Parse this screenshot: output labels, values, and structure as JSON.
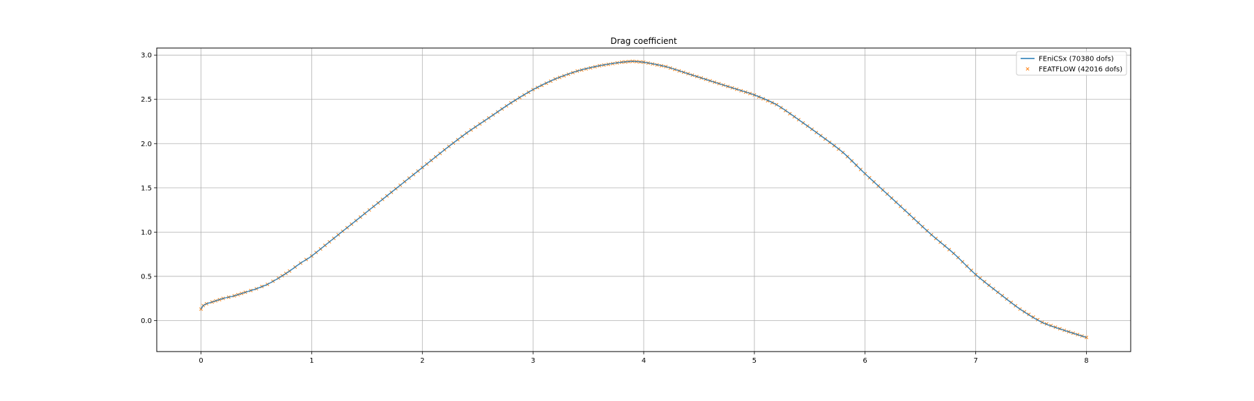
{
  "chart_data": {
    "type": "line",
    "title": "Drag coefficient",
    "xlabel": "",
    "ylabel": "",
    "xlim": [
      -0.4,
      8.4
    ],
    "ylim": [
      -0.35,
      3.08
    ],
    "xticks": [
      0,
      1,
      2,
      3,
      4,
      5,
      6,
      7,
      8
    ],
    "yticks": [
      0.0,
      0.5,
      1.0,
      1.5,
      2.0,
      2.5,
      3.0
    ],
    "xtick_labels": [
      "0",
      "1",
      "2",
      "3",
      "4",
      "5",
      "6",
      "7",
      "8"
    ],
    "ytick_labels": [
      "0.0",
      "0.5",
      "1.0",
      "1.5",
      "2.0",
      "2.5",
      "3.0"
    ],
    "grid": true,
    "legend_position": "top-right",
    "series": [
      {
        "name": "FEniCSx  (70380 dofs)",
        "style": "line",
        "color": "#1f77b4",
        "x": [
          0.0,
          0.02,
          0.05,
          0.1,
          0.2,
          0.3,
          0.4,
          0.5,
          0.6,
          0.7,
          0.8,
          0.9,
          1.0,
          1.2,
          1.4,
          1.6,
          1.8,
          2.0,
          2.2,
          2.4,
          2.6,
          2.8,
          3.0,
          3.2,
          3.4,
          3.6,
          3.8,
          3.9,
          4.0,
          4.2,
          4.4,
          4.6,
          4.8,
          5.0,
          5.2,
          5.4,
          5.6,
          5.8,
          6.0,
          6.2,
          6.4,
          6.6,
          6.8,
          7.0,
          7.2,
          7.4,
          7.6,
          7.8,
          8.0
        ],
        "y": [
          0.13,
          0.17,
          0.19,
          0.21,
          0.25,
          0.28,
          0.32,
          0.36,
          0.41,
          0.48,
          0.56,
          0.65,
          0.73,
          0.93,
          1.13,
          1.33,
          1.53,
          1.73,
          1.93,
          2.12,
          2.29,
          2.46,
          2.61,
          2.73,
          2.82,
          2.88,
          2.92,
          2.93,
          2.92,
          2.87,
          2.79,
          2.71,
          2.63,
          2.55,
          2.44,
          2.27,
          2.09,
          1.9,
          1.66,
          1.43,
          1.2,
          0.97,
          0.76,
          0.52,
          0.32,
          0.13,
          -0.02,
          -0.11,
          -0.19
        ]
      },
      {
        "name": "FEATFLOW (42016 dofs)",
        "style": "marker-x",
        "color": "#ff7f0e",
        "x": [
          0.0,
          0.02,
          0.05,
          0.1,
          0.2,
          0.3,
          0.4,
          0.5,
          0.6,
          0.7,
          0.8,
          0.9,
          1.0,
          1.2,
          1.4,
          1.6,
          1.8,
          2.0,
          2.2,
          2.4,
          2.6,
          2.8,
          3.0,
          3.2,
          3.4,
          3.6,
          3.8,
          3.9,
          4.0,
          4.2,
          4.4,
          4.6,
          4.8,
          5.0,
          5.2,
          5.4,
          5.6,
          5.8,
          6.0,
          6.2,
          6.4,
          6.6,
          6.8,
          7.0,
          7.2,
          7.4,
          7.6,
          7.8,
          8.0
        ],
        "y": [
          0.13,
          0.17,
          0.19,
          0.21,
          0.25,
          0.28,
          0.32,
          0.36,
          0.41,
          0.48,
          0.56,
          0.65,
          0.73,
          0.93,
          1.13,
          1.33,
          1.53,
          1.73,
          1.93,
          2.12,
          2.29,
          2.46,
          2.61,
          2.73,
          2.82,
          2.88,
          2.92,
          2.93,
          2.92,
          2.87,
          2.79,
          2.71,
          2.63,
          2.55,
          2.44,
          2.27,
          2.09,
          1.9,
          1.66,
          1.43,
          1.2,
          0.97,
          0.76,
          0.52,
          0.32,
          0.13,
          -0.02,
          -0.11,
          -0.19
        ]
      }
    ]
  }
}
